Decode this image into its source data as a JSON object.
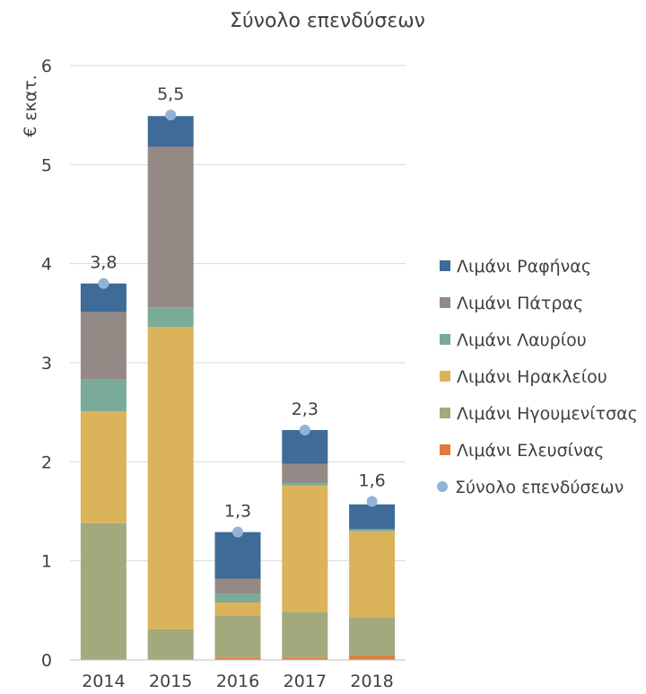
{
  "chart_data": {
    "type": "bar",
    "stacked": true,
    "title": "Σύνολο επενδύσεων",
    "ylabel": "€ εκατ.",
    "xlabel": "",
    "categories": [
      "2014",
      "2015",
      "2016",
      "2017",
      "2018"
    ],
    "ylim": [
      0,
      6
    ],
    "yticks": [
      "0",
      "1",
      "2",
      "3",
      "4",
      "5",
      "6"
    ],
    "grid": true,
    "legend_position": "right",
    "series": [
      {
        "name": "Λιμάνι Ελευσίνας",
        "color": "#e07b39",
        "values": [
          0.0,
          0.0,
          0.02,
          0.02,
          0.04
        ]
      },
      {
        "name": "Λιμάνι Ηγουμενίτσας",
        "color": "#a3a97c",
        "values": [
          1.38,
          0.31,
          0.43,
          0.46,
          0.39
        ]
      },
      {
        "name": "Λιμάνι Ηρακλείου",
        "color": "#dbb35a",
        "values": [
          1.13,
          3.05,
          0.13,
          1.28,
          0.87
        ]
      },
      {
        "name": "Λιμάνι Λαυρίου",
        "color": "#7aab98",
        "values": [
          0.32,
          0.2,
          0.09,
          0.03,
          0.02
        ]
      },
      {
        "name": "Λιμάνι Πάτρας",
        "color": "#958986",
        "values": [
          0.68,
          1.62,
          0.15,
          0.19,
          0.0
        ]
      },
      {
        "name": "Λιμάνι Ραφήνας",
        "color": "#3e6b97",
        "values": [
          0.29,
          0.31,
          0.47,
          0.34,
          0.25
        ]
      }
    ],
    "total": {
      "name": "Σύνολο επενδύσεων",
      "color": "#93b3d6",
      "values": [
        3.8,
        5.5,
        1.29,
        2.32,
        1.6
      ],
      "labels": [
        "3,8",
        "5,5",
        "1,3",
        "2,3",
        "1,6"
      ]
    },
    "legend_order": [
      "Λιμάνι Ραφήνας",
      "Λιμάνι Πάτρας",
      "Λιμάνι Λαυρίου",
      "Λιμάνι Ηρακλείου",
      "Λιμάνι Ηγουμενίτσας",
      "Λιμάνι Ελευσίνας",
      "Σύνολο επενδύσεων"
    ]
  }
}
